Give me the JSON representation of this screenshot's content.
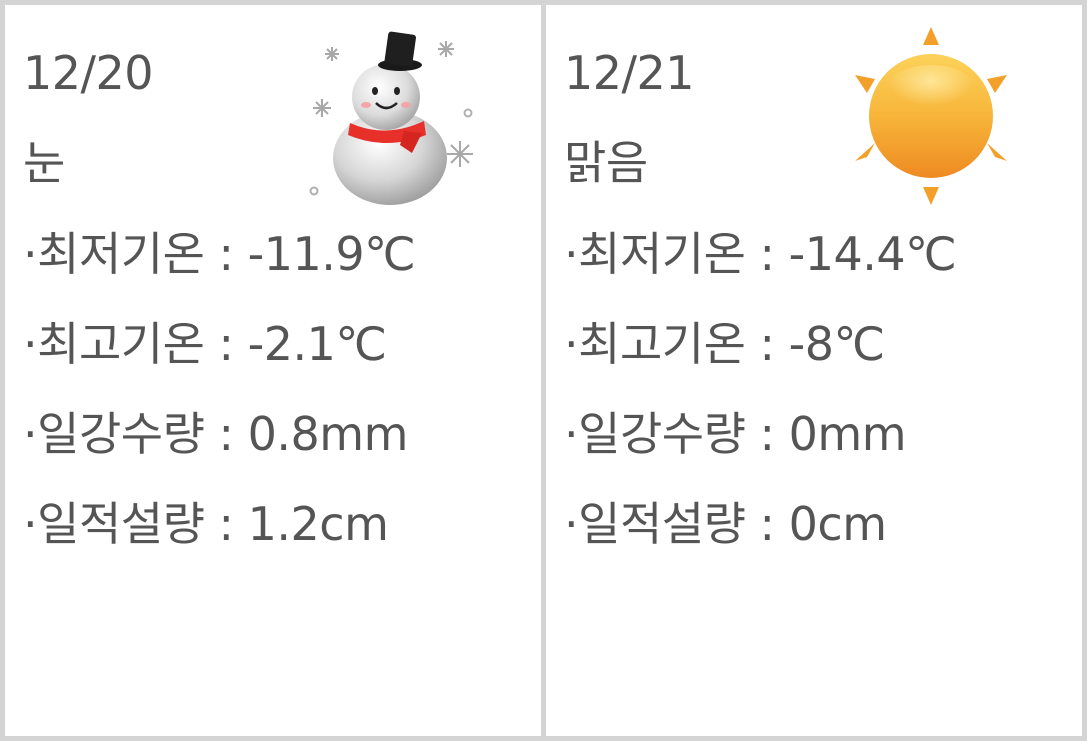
{
  "days": [
    {
      "date": "12/20",
      "condition": "눈",
      "icon": "snowman-icon",
      "rows": [
        "·최저기온 : -11.9℃",
        "·최고기온 : -2.1℃",
        "·일강수량 : 0.8mm",
        "·일적설량 : 1.2cm"
      ]
    },
    {
      "date": "12/21",
      "condition": "맑음",
      "icon": "sun-icon",
      "rows": [
        "·최저기온 : -14.4℃",
        "·최고기온 : -8℃",
        "·일강수량 : 0mm",
        "·일적설량 : 0cm"
      ]
    }
  ],
  "colors": {
    "text": "#555555",
    "border": "#d4d4d4",
    "scarf": "#e8302a",
    "sun": "#f5a623"
  }
}
